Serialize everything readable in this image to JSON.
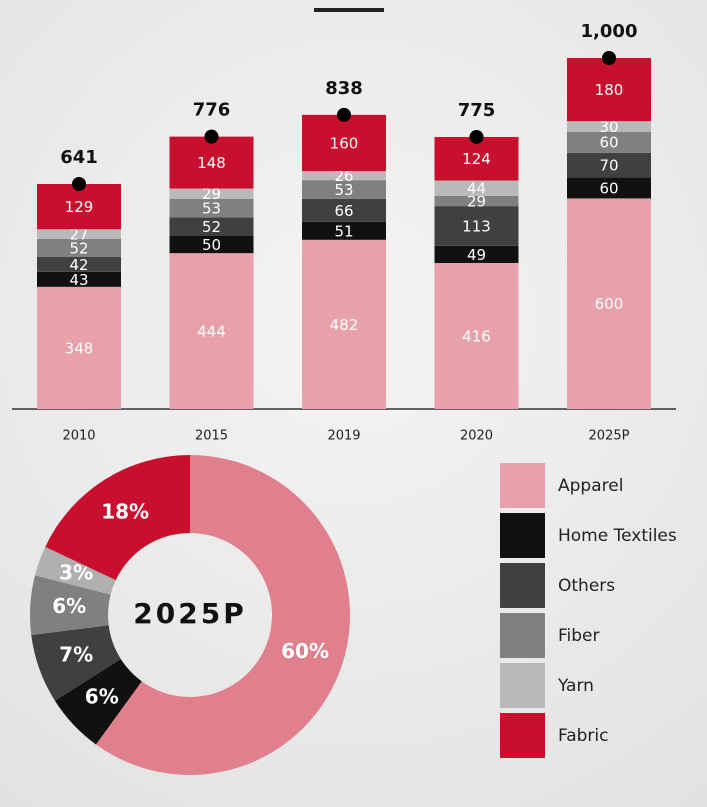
{
  "chart_data": [
    {
      "type": "bar",
      "categories": [
        "2010",
        "2015",
        "2019",
        "2020",
        "2025P"
      ],
      "series": [
        {
          "name": "Apparel",
          "color": "#e8a1aa",
          "values": [
            348,
            444,
            482,
            416,
            600
          ]
        },
        {
          "name": "Home Textiles",
          "color": "#111111",
          "values": [
            43,
            50,
            51,
            49,
            60
          ]
        },
        {
          "name": "Others",
          "color": "#404040",
          "values": [
            42,
            52,
            66,
            113,
            70
          ]
        },
        {
          "name": "Fiber",
          "color": "#808080",
          "values": [
            52,
            53,
            53,
            29,
            60
          ]
        },
        {
          "name": "Yarn",
          "color": "#b9b9b9",
          "values": [
            27,
            29,
            26,
            44,
            30
          ]
        },
        {
          "name": "Fabric",
          "color": "#c8102e",
          "values": [
            129,
            148,
            160,
            124,
            180
          ]
        }
      ],
      "totals": {
        "values": [
          641,
          776,
          838,
          775,
          1000
        ],
        "value_labels": [
          "641",
          "776",
          "838",
          "775",
          "1,000"
        ]
      }
    },
    {
      "type": "pie",
      "center_label": "2025P",
      "categories": [
        "Apparel",
        "Home Textiles",
        "Others",
        "Fiber",
        "Yarn",
        "Fabric"
      ],
      "colors": [
        "#e0808d",
        "#111111",
        "#404040",
        "#808080",
        "#b0b0b0",
        "#c8102e"
      ],
      "values": [
        60,
        6,
        7,
        6,
        3,
        18
      ],
      "value_labels": [
        "60%",
        "6%",
        "7%",
        "6%",
        "3%",
        "18%"
      ]
    }
  ]
}
